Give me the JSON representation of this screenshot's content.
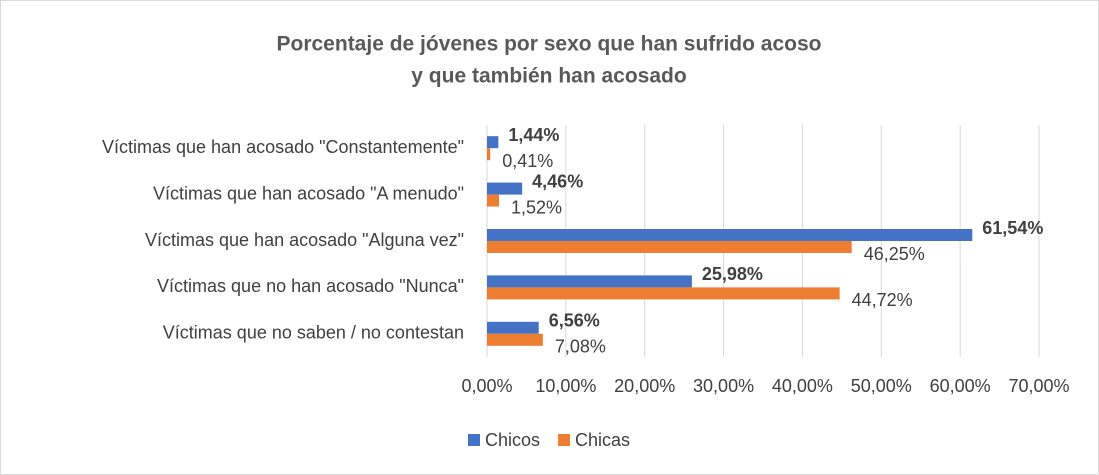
{
  "chart_data": {
    "type": "hbar",
    "title": [
      "Porcentaje de jóvenes por sexo que han sufrido acoso",
      "y que también han acosado"
    ],
    "categories": [
      "Víctimas que han acosado \"Constantemente\"",
      "Víctimas que han acosado \"A menudo\"",
      "Víctimas que han acosado \"Alguna vez\"",
      "Víctimas que no han acosado \"Nunca\"",
      "Víctimas que no saben / no contestan"
    ],
    "series": [
      {
        "name": "Chicos",
        "color": "#4472c4",
        "values": [
          1.44,
          4.46,
          61.54,
          25.98,
          6.56
        ],
        "value_labels": [
          "1,44%",
          "4,46%",
          "61,54%",
          "25,98%",
          "6,56%"
        ]
      },
      {
        "name": "Chicas",
        "color": "#ed7d31",
        "values": [
          0.41,
          1.52,
          46.25,
          44.72,
          7.08
        ],
        "value_labels": [
          "0,41%",
          "1,52%",
          "46,25%",
          "44,72%",
          "7,08%"
        ]
      }
    ],
    "xlim": [
      0,
      70
    ],
    "xticks": [
      {
        "value": 0,
        "label": "0,00%"
      },
      {
        "value": 10,
        "label": "10,00%"
      },
      {
        "value": 20,
        "label": "20,00%"
      },
      {
        "value": 30,
        "label": "30,00%"
      },
      {
        "value": 40,
        "label": "40,00%"
      },
      {
        "value": 50,
        "label": "50,00%"
      },
      {
        "value": 60,
        "label": "60,00%"
      },
      {
        "value": 70,
        "label": "70,00%"
      }
    ],
    "grid": true,
    "legend": "bottom"
  }
}
